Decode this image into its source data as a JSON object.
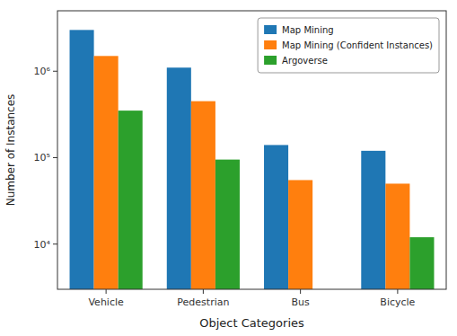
{
  "chart_data": {
    "type": "bar",
    "categories": [
      "Vehicle",
      "Pedestrian",
      "Bus",
      "Bicycle"
    ],
    "series": [
      {
        "name": "Map Mining",
        "color": "#1f77b4",
        "values": [
          3000000,
          1100000,
          140000,
          120000
        ]
      },
      {
        "name": "Map Mining (Confident Instances)",
        "color": "#ff7f0e",
        "values": [
          1500000,
          450000,
          55000,
          50000
        ]
      },
      {
        "name": "Argoverse",
        "color": "#2ca02c",
        "values": [
          350000,
          95000,
          3000,
          12000
        ]
      }
    ],
    "x_label": "Object Categories",
    "y_label": "Number of Instances",
    "log": "y",
    "ylim": [
      3000,
      5000000
    ],
    "yticks": [
      {
        "value": 10000,
        "label": "10⁴"
      },
      {
        "value": 100000,
        "label": "10⁵"
      },
      {
        "value": 1000000,
        "label": "10⁶"
      }
    ],
    "grid": false,
    "legend": "upper right"
  }
}
